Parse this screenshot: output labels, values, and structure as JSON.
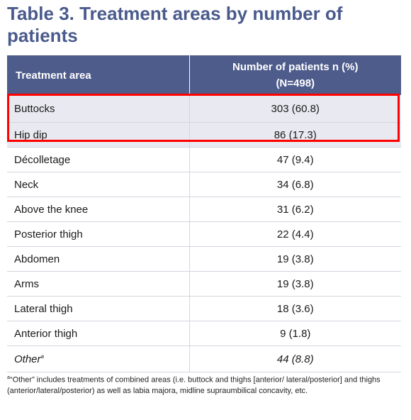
{
  "title": "Table 3. Treatment areas by number of patients",
  "table": {
    "headers": {
      "area": "Treatment area",
      "count": "Number of patients n (%)",
      "count_sub": "(N=498)"
    },
    "rows": [
      {
        "area": "Buttocks",
        "value": "303 (60.8)"
      },
      {
        "area": "Hip dip",
        "value": "86 (17.3)"
      },
      {
        "area": "Décolletage",
        "value": "47 (9.4)"
      },
      {
        "area": "Neck",
        "value": "34 (6.8)"
      },
      {
        "area": "Above the knee",
        "value": "31 (6.2)"
      },
      {
        "area": "Posterior thigh",
        "value": "22 (4.4)"
      },
      {
        "area": "Abdomen",
        "value": "19 (3.8)"
      },
      {
        "area": "Arms",
        "value": "19 (3.8)"
      },
      {
        "area": "Lateral thigh",
        "value": "18 (3.6)"
      },
      {
        "area": "Anterior thigh",
        "value": "9 (1.8)"
      }
    ],
    "other": {
      "area": "Other",
      "marker": "a",
      "value": "44 (8.8)"
    }
  },
  "footnote": {
    "marker": "a",
    "text": "“Other” includes treatments of combined areas (i.e. buttock and thighs [anterior/ lateral/posterior] and thighs (anterior/lateral/posterior) as well as labia majora, midline supraumbilical concavity, etc."
  },
  "colors": {
    "title": "#4a5a8c",
    "header_bg": "#4e5c8c",
    "shaded_row": "#e9eaf1",
    "highlight_box": "#ff0000"
  }
}
